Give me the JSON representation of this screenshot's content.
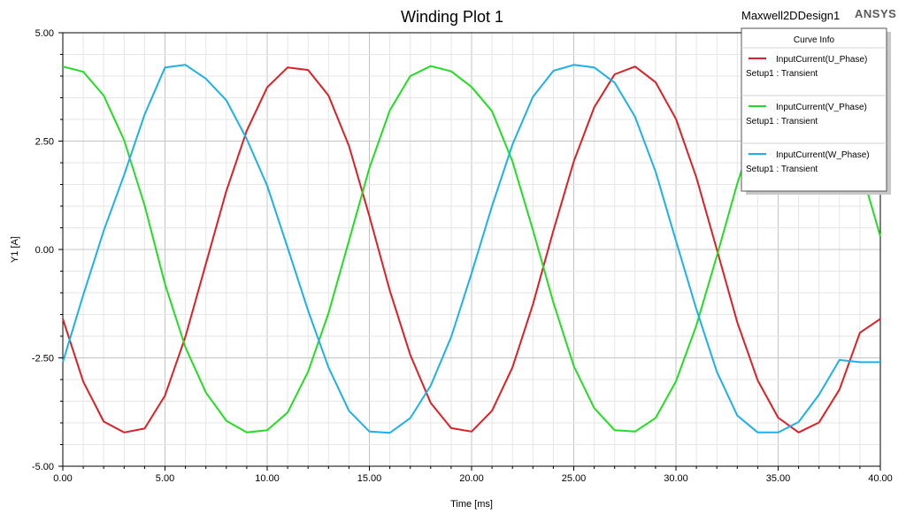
{
  "chart_data": {
    "type": "line",
    "title": "Winding Plot 1",
    "design_name": "Maxwell2DDesign1",
    "brand": "ANSYS",
    "xlabel": "Time [ms]",
    "ylabel": "Y1 [A]",
    "xlim": [
      0,
      40
    ],
    "ylim": [
      -5,
      5
    ],
    "x_ticks": [
      "0.00",
      "5.00",
      "10.00",
      "15.00",
      "20.00",
      "25.00",
      "30.00",
      "35.00",
      "40.00"
    ],
    "y_ticks": [
      "5.00",
      "2.50",
      "0.00",
      "-2.50",
      "-5.00"
    ],
    "x_tick_values": [
      0,
      5,
      10,
      15,
      20,
      25,
      30,
      35,
      40
    ],
    "y_tick_values": [
      5,
      2.5,
      0,
      -2.5,
      -5
    ],
    "grid": true,
    "legend": {
      "title": "Curve Info",
      "position": "top-right"
    },
    "series": [
      {
        "name": "InputCurrent(U_Phase)",
        "subtitle": "Setup1 : Transient",
        "color": "#dd1f26",
        "x": [
          0,
          1,
          2,
          3,
          4,
          5,
          6,
          7,
          8,
          9,
          10,
          11,
          12,
          13,
          14,
          15,
          16,
          17,
          18,
          19,
          20,
          21,
          22,
          23,
          24,
          25,
          26,
          27,
          28,
          29,
          30,
          31,
          32,
          33,
          34,
          35,
          36,
          37,
          38,
          39,
          40
        ],
        "values": [
          -1.6,
          -3.05,
          -3.97,
          -4.22,
          -4.13,
          -3.37,
          -2.01,
          -0.33,
          1.35,
          2.74,
          3.74,
          4.2,
          4.14,
          3.55,
          2.39,
          0.77,
          -0.95,
          -2.43,
          -3.54,
          -4.12,
          -4.2,
          -3.72,
          -2.72,
          -1.27,
          0.43,
          2.03,
          3.28,
          4.04,
          4.22,
          3.86,
          3.01,
          1.66,
          0.0,
          -1.68,
          -3.02,
          -3.88,
          -4.22,
          -3.99,
          -3.23,
          -1.92,
          -1.6
        ]
      },
      {
        "name": "InputCurrent(V_Phase)",
        "subtitle": "Setup1 : Transient",
        "color": "#22dd22",
        "x": [
          0,
          1,
          2,
          3,
          4,
          5,
          6,
          7,
          8,
          9,
          10,
          11,
          12,
          13,
          14,
          15,
          16,
          17,
          18,
          19,
          20,
          21,
          22,
          23,
          24,
          25,
          26,
          27,
          28,
          29,
          30,
          31,
          32,
          33,
          34,
          35,
          36,
          37,
          38,
          39,
          40
        ],
        "values": [
          4.22,
          4.1,
          3.55,
          2.52,
          1.02,
          -0.8,
          -2.26,
          -3.3,
          -3.95,
          -4.22,
          -4.17,
          -3.76,
          -2.82,
          -1.47,
          0.2,
          1.88,
          3.21,
          4.0,
          4.23,
          4.11,
          3.75,
          3.19,
          2.03,
          0.45,
          -1.22,
          -2.69,
          -3.66,
          -4.17,
          -4.2,
          -3.89,
          -3.04,
          -1.75,
          -0.15,
          1.52,
          2.98,
          3.93,
          4.23,
          4.01,
          3.23,
          1.93,
          0.3
        ]
      },
      {
        "name": "InputCurrent(W_Phase)",
        "subtitle": "Setup1 : Transient",
        "color": "#1eb0e8",
        "x": [
          0,
          1,
          2,
          3,
          4,
          5,
          6,
          7,
          8,
          9,
          10,
          11,
          12,
          13,
          14,
          15,
          16,
          17,
          18,
          19,
          20,
          21,
          22,
          23,
          24,
          25,
          26,
          27,
          28,
          29,
          30,
          31,
          32,
          33,
          34,
          35,
          36,
          37,
          38,
          39,
          40
        ],
        "values": [
          -2.6,
          -1.05,
          0.43,
          1.72,
          3.11,
          4.2,
          4.26,
          3.94,
          3.44,
          2.55,
          1.47,
          0.04,
          -1.41,
          -2.72,
          -3.72,
          -4.2,
          -4.23,
          -3.89,
          -3.14,
          -2.02,
          -0.55,
          1.0,
          2.42,
          3.52,
          4.12,
          4.26,
          4.2,
          3.85,
          3.06,
          1.8,
          0.2,
          -1.38,
          -2.82,
          -3.83,
          -4.22,
          -4.22,
          -3.98,
          -3.35,
          -2.55,
          -2.6,
          -2.6
        ]
      }
    ]
  }
}
